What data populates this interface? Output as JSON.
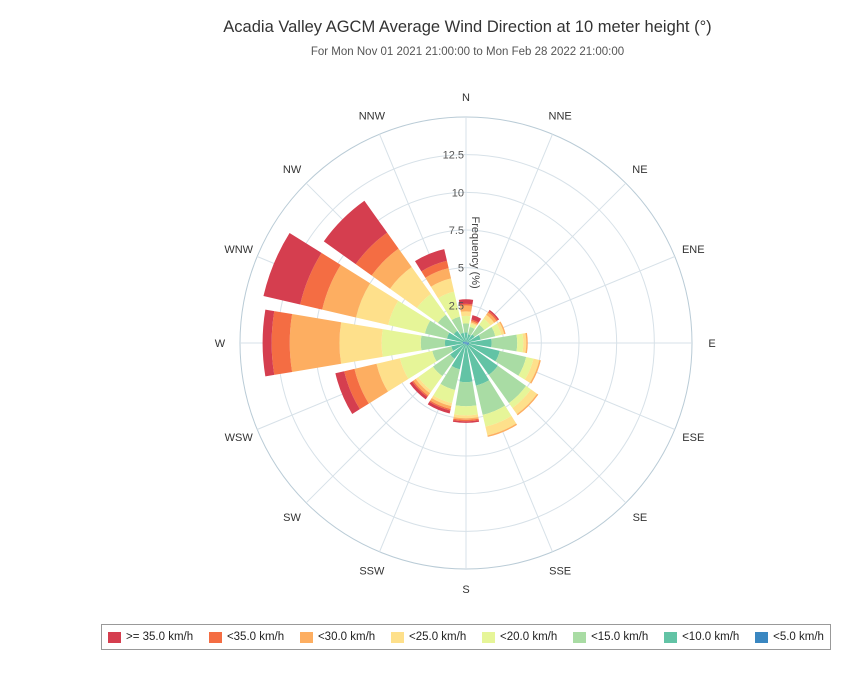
{
  "chart_data": {
    "type": "windrose",
    "title": "Acadia Valley AGCM Average Wind Direction at 10 meter height (°)",
    "subtitle": "For Mon Nov 01 2021 21:00:00 to Mon Feb 28 2022 21:00:00",
    "radial_axis_label": "Frequency (%)",
    "radial_ticks": [
      "2.5",
      "5",
      "7.5",
      "10",
      "12.5"
    ],
    "rmax": 15,
    "directions": [
      "N",
      "NNE",
      "NE",
      "ENE",
      "E",
      "ESE",
      "SE",
      "SSE",
      "S",
      "SSW",
      "SW",
      "WSW",
      "W",
      "WNW",
      "NW",
      "NNW"
    ],
    "series": [
      {
        "name": "<5.0 km/h",
        "color": "#3a87c1",
        "values": [
          0.1,
          0.1,
          0.1,
          0.1,
          0.2,
          0.2,
          0.2,
          0.1,
          0.1,
          0.1,
          0.1,
          0.1,
          0.2,
          0.2,
          0.1,
          0.1
        ]
      },
      {
        "name": "<10.0 km/h",
        "color": "#62c3a5",
        "values": [
          0.6,
          0.5,
          0.6,
          0.9,
          1.5,
          2.1,
          2.4,
          2.8,
          2.5,
          1.7,
          1.2,
          0.9,
          1.2,
          1.1,
          0.9,
          0.6
        ]
      },
      {
        "name": "<15.0 km/h",
        "color": "#a9dca4",
        "values": [
          0.6,
          0.5,
          0.8,
          1.0,
          1.7,
          1.8,
          2.3,
          2.0,
          1.6,
          1.4,
          1.4,
          1.3,
          1.6,
          1.5,
          1.3,
          1.1
        ]
      },
      {
        "name": "<20.0 km/h",
        "color": "#e6f598",
        "values": [
          0.5,
          0.2,
          0.5,
          0.4,
          0.4,
          0.5,
          0.4,
          0.8,
          0.6,
          0.9,
          1.2,
          2.2,
          2.6,
          2.5,
          1.7,
          1.7
        ]
      },
      {
        "name": "<25.0 km/h",
        "color": "#fee08b",
        "values": [
          0.3,
          0.1,
          0.3,
          0.2,
          0.2,
          0.4,
          0.5,
          0.6,
          0.2,
          0.2,
          0.2,
          1.6,
          2.8,
          2.2,
          2.2,
          0.9
        ]
      },
      {
        "name": "<30.0 km/h",
        "color": "#fdae61",
        "values": [
          0.4,
          0.1,
          0.2,
          0.1,
          0.1,
          0.1,
          0.1,
          0.1,
          0.1,
          0.2,
          0.2,
          1.5,
          3.3,
          2.3,
          1.5,
          0.7
        ]
      },
      {
        "name": "<35.0 km/h",
        "color": "#f46d43",
        "values": [
          0.1,
          0.1,
          0.1,
          0,
          0,
          0,
          0,
          0,
          0.1,
          0.1,
          0.1,
          0.7,
          1.2,
          1.5,
          1.3,
          0.5
        ]
      },
      {
        "name": ">= 35.0 km/h",
        "color": "#d53e4f",
        "values": [
          0.3,
          0.3,
          0.1,
          0,
          0,
          0,
          0,
          0,
          0.1,
          0.2,
          0.2,
          0.6,
          0.6,
          2.5,
          2.6,
          0.8
        ]
      }
    ],
    "legend_order": [
      ">= 35.0 km/h",
      "<35.0 km/h",
      "<30.0 km/h",
      "<25.0 km/h",
      "<20.0 km/h",
      "<15.0 km/h",
      "<10.0 km/h",
      "<5.0 km/h"
    ],
    "legend_position": "bottom",
    "grid": true
  }
}
